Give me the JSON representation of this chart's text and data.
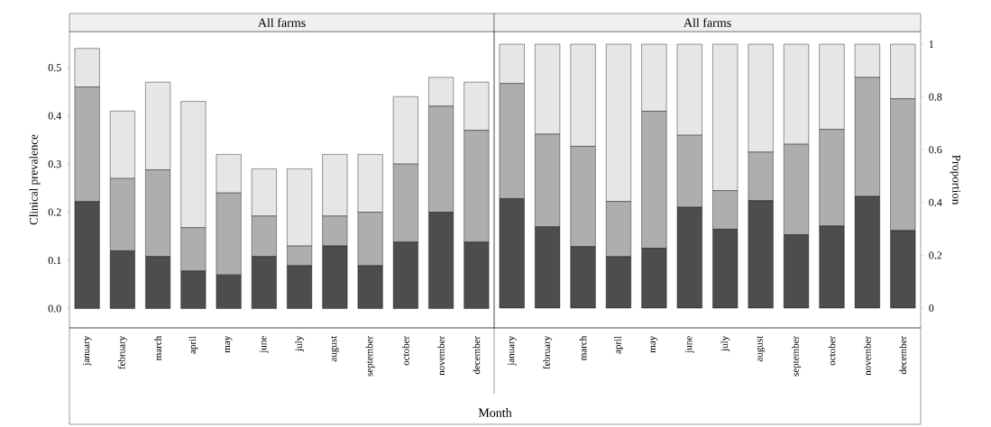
{
  "chart_data": [
    {
      "type": "bar",
      "title": "All farms",
      "xlabel": "Month",
      "ylabel": "Clinical prevalence",
      "stacked": true,
      "categories": [
        "january",
        "february",
        "march",
        "april",
        "may",
        "june",
        "july",
        "august",
        "september",
        "october",
        "november",
        "december"
      ],
      "ylim": [
        -0.04,
        0.575
      ],
      "yticks": [
        {
          "value": 0,
          "label": "0.0"
        },
        0.1,
        0.2,
        0.3,
        0.4,
        0.5
      ],
      "series": [
        {
          "color": "#4d4d4d",
          "values": [
            0.222,
            0.12,
            0.108,
            0.078,
            0.07,
            0.108,
            0.089,
            0.13,
            0.089,
            0.138,
            0.2,
            0.138
          ]
        },
        {
          "color": "#aeaeae",
          "values": [
            0.238,
            0.15,
            0.18,
            0.09,
            0.17,
            0.084,
            0.041,
            0.062,
            0.111,
            0.162,
            0.22,
            0.232
          ]
        },
        {
          "color": "#e6e6e6",
          "values": [
            0.08,
            0.14,
            0.182,
            0.262,
            0.08,
            0.098,
            0.16,
            0.128,
            0.12,
            0.14,
            0.06,
            0.1
          ]
        }
      ]
    },
    {
      "type": "bar",
      "title": "All farms",
      "ylabel": "Proportion",
      "stacked": true,
      "categories": [
        "january",
        "february",
        "march",
        "april",
        "may",
        "june",
        "july",
        "august",
        "september",
        "october",
        "november",
        "december"
      ],
      "ylim": [
        -0.075,
        1.048
      ],
      "yticks": [
        0,
        0.2,
        0.4,
        0.6,
        0.8,
        1
      ],
      "series": [
        {
          "color": "#4d4d4d",
          "values": [
            0.415,
            0.308,
            0.233,
            0.195,
            0.227,
            0.382,
            0.299,
            0.407,
            0.278,
            0.311,
            0.423,
            0.294
          ]
        },
        {
          "color": "#aeaeae",
          "values": [
            0.436,
            0.351,
            0.38,
            0.209,
            0.519,
            0.273,
            0.146,
            0.184,
            0.343,
            0.366,
            0.451,
            0.499
          ]
        },
        {
          "color": "#e6e6e6",
          "values": [
            0.149,
            0.341,
            0.387,
            0.596,
            0.254,
            0.345,
            0.555,
            0.409,
            0.379,
            0.323,
            0.126,
            0.207
          ]
        }
      ]
    }
  ]
}
